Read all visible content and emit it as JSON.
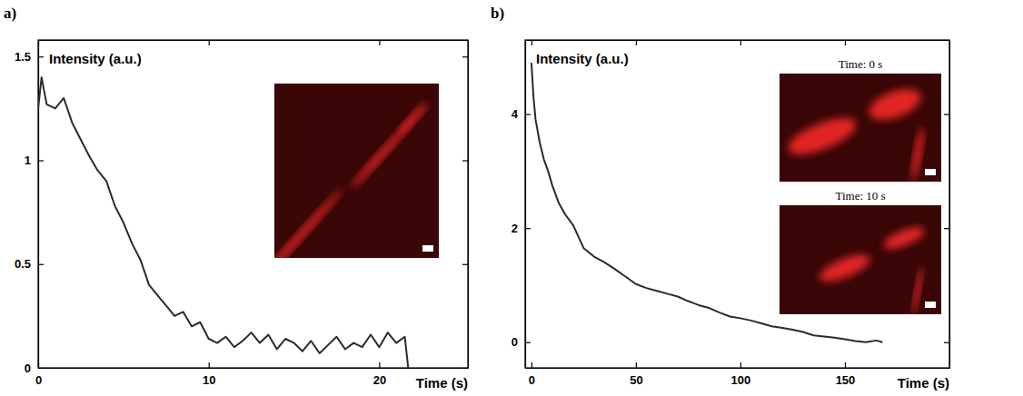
{
  "chart_data": [
    {
      "type": "line",
      "title": "a)",
      "y_label": "Intensity (a.u.)",
      "x_label": "Time (s)",
      "color": "#2b2b2b",
      "x": [
        0,
        0.2,
        0.5,
        1,
        1.5,
        2,
        2.5,
        3,
        3.5,
        4,
        4.5,
        5,
        5.5,
        6,
        6.5,
        7,
        7.5,
        8,
        8.5,
        9,
        9.5,
        10,
        10.5,
        11,
        11.5,
        12,
        12.5,
        13,
        13.5,
        14,
        14.5,
        15,
        15.5,
        16,
        16.5,
        17,
        17.5,
        18,
        18.5,
        19,
        19.5,
        20,
        20.5,
        21,
        21.5,
        21.7
      ],
      "values": [
        1.25,
        1.4,
        1.27,
        1.25,
        1.3,
        1.18,
        1.1,
        1.02,
        0.95,
        0.9,
        0.78,
        0.7,
        0.6,
        0.52,
        0.4,
        0.35,
        0.3,
        0.25,
        0.27,
        0.2,
        0.22,
        0.14,
        0.12,
        0.15,
        0.1,
        0.13,
        0.17,
        0.12,
        0.16,
        0.09,
        0.14,
        0.12,
        0.08,
        0.13,
        0.07,
        0.11,
        0.15,
        0.09,
        0.12,
        0.1,
        0.16,
        0.1,
        0.17,
        0.12,
        0.15,
        0.0
      ],
      "xlim": [
        0,
        25.2
      ],
      "xticks": [
        0,
        10,
        20
      ],
      "ylim": [
        0,
        1.58
      ],
      "yticks": [
        0,
        0.5,
        1,
        1.5
      ]
    },
    {
      "type": "line",
      "title": "b)",
      "y_label": "Intensity (a.u.)",
      "x_label": "Time (s)",
      "color": "#2b2b2b",
      "annotations": [
        "Time: 0 s",
        "Time: 10 s"
      ],
      "x": [
        0,
        1,
        2,
        4,
        6,
        8,
        10,
        13,
        16,
        20,
        25,
        30,
        35,
        40,
        45,
        50,
        55,
        60,
        65,
        70,
        75,
        80,
        85,
        90,
        95,
        100,
        105,
        110,
        115,
        120,
        125,
        130,
        135,
        140,
        145,
        150,
        155,
        160,
        165,
        168
      ],
      "values": [
        4.9,
        4.3,
        3.9,
        3.5,
        3.2,
        3.0,
        2.75,
        2.45,
        2.25,
        2.05,
        1.65,
        1.5,
        1.4,
        1.28,
        1.15,
        1.02,
        0.95,
        0.9,
        0.85,
        0.8,
        0.72,
        0.65,
        0.6,
        0.52,
        0.45,
        0.42,
        0.38,
        0.33,
        0.28,
        0.25,
        0.22,
        0.18,
        0.12,
        0.1,
        0.08,
        0.05,
        0.02,
        0.0,
        0.03,
        0.0
      ],
      "xlim": [
        -3,
        200
      ],
      "xticks": [
        0,
        50,
        100,
        150
      ],
      "ylim": [
        -0.45,
        5.3
      ],
      "yticks": [
        0,
        2,
        4
      ]
    }
  ]
}
